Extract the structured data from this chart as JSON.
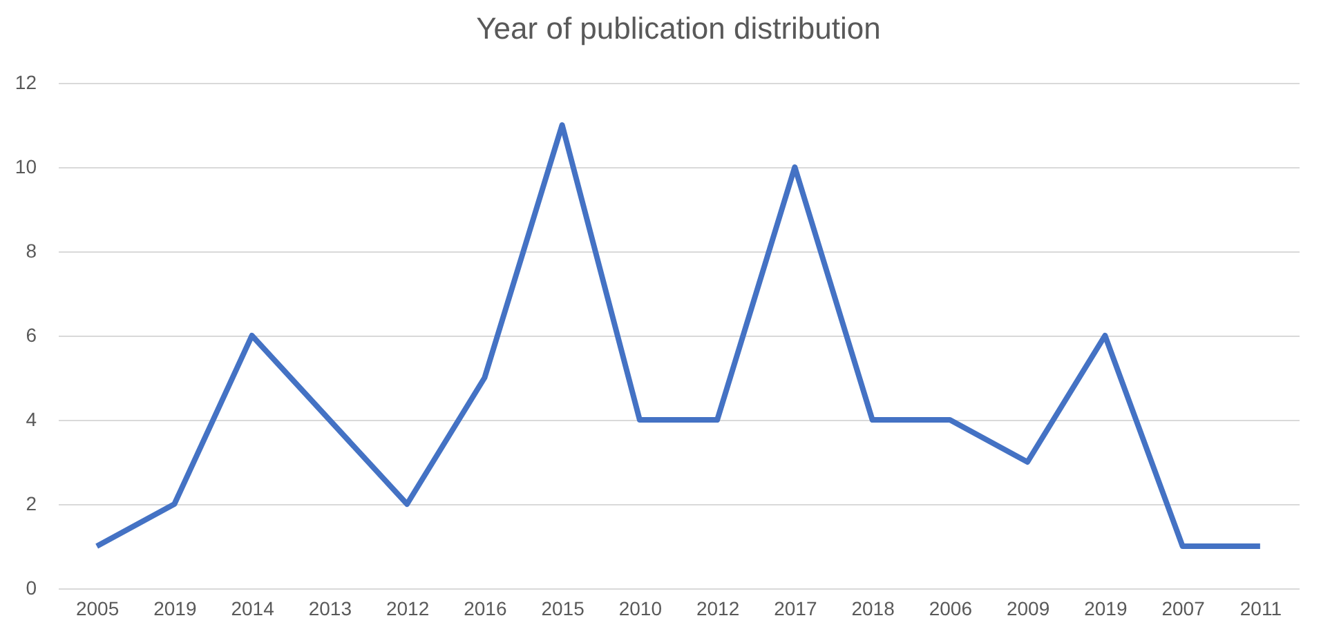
{
  "chart_data": {
    "type": "line",
    "title": "Year of publication distribution",
    "categories": [
      "2005",
      "2019",
      "2014",
      "2013",
      "2012",
      "2016",
      "2015",
      "2010",
      "2012",
      "2017",
      "2018",
      "2006",
      "2009",
      "2019",
      "2007",
      "2011"
    ],
    "series": [
      {
        "color": "#4472c4",
        "values": [
          1,
          2,
          6,
          4,
          2,
          5,
          11,
          4,
          4,
          10,
          4,
          4,
          3,
          6,
          1,
          1
        ]
      }
    ],
    "ylim": [
      0,
      12
    ],
    "yticks": [
      0,
      2,
      4,
      6,
      8,
      10,
      12
    ],
    "grid": "y",
    "legend": false,
    "marker": "none",
    "line_style": "solid"
  }
}
